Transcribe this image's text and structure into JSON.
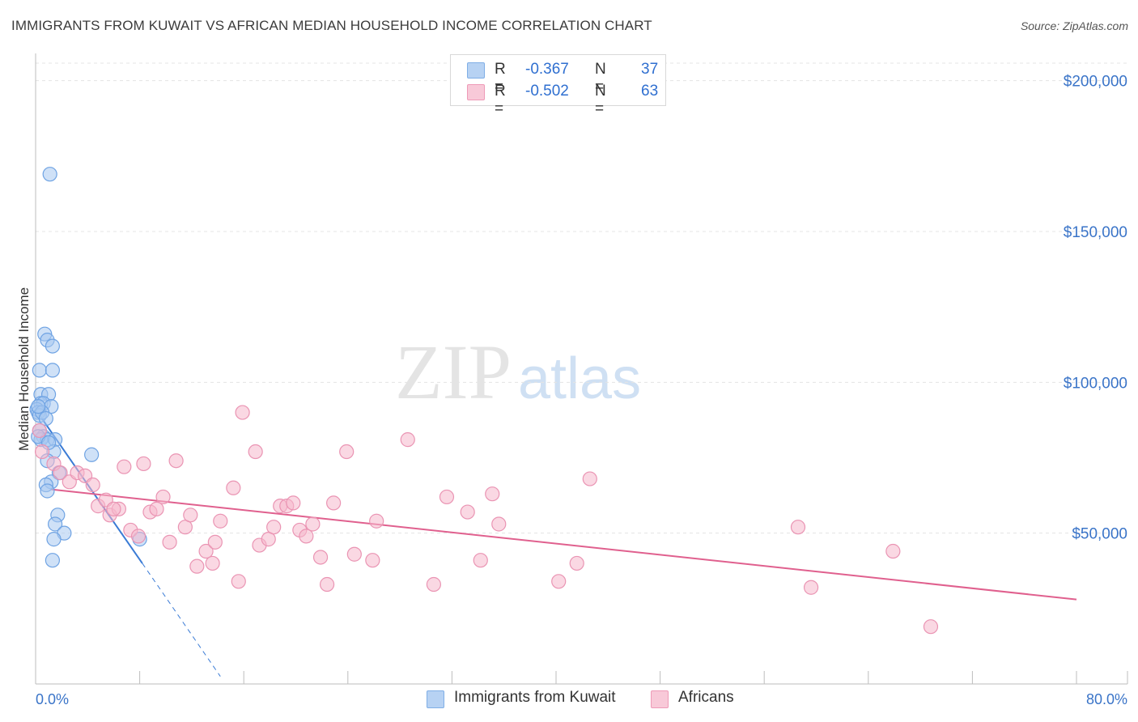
{
  "title": "IMMIGRANTS FROM KUWAIT VS AFRICAN MEDIAN HOUSEHOLD INCOME CORRELATION CHART",
  "source": "Source: ZipAtlas.com",
  "watermark": {
    "part1": "ZIP",
    "part2": "atlas"
  },
  "legend_top": [
    {
      "r_label": "R =",
      "r_value": "-0.367",
      "n_label": "N =",
      "n_value": "37",
      "color": "#a8c8f0"
    },
    {
      "r_label": "R =",
      "r_value": "-0.502",
      "n_label": "N =",
      "n_value": "63",
      "color": "#f5b8cc"
    }
  ],
  "legend_bottom": [
    {
      "label": "Immigrants from Kuwait",
      "color": "#a8c8f0"
    },
    {
      "label": "Africans",
      "color": "#f5b8cc"
    }
  ],
  "chart_data": {
    "type": "scatter",
    "ylabel": "Median Household Income",
    "xlabel": "",
    "x_tick_labels": [
      "0.0%",
      "80.0%"
    ],
    "y_tick_labels": [
      "$200,000",
      "$150,000",
      "$100,000",
      "$50,000"
    ],
    "xlim": [
      0,
      80
    ],
    "ylim": [
      0,
      205000
    ],
    "y_gridlines": [
      50000,
      100000,
      150000,
      200000
    ],
    "colors": {
      "kuwait": "#3a7bd5",
      "kuwait_fill": "#a8c8f0",
      "africans": "#e0608e",
      "africans_fill": "#f5b8cc",
      "tick_label": "#3a74c8"
    },
    "series": [
      {
        "name": "Immigrants from Kuwait",
        "points": [
          [
            1.1,
            169000
          ],
          [
            0.7,
            116000
          ],
          [
            0.9,
            114000
          ],
          [
            1.3,
            112000
          ],
          [
            0.3,
            104000
          ],
          [
            1.3,
            104000
          ],
          [
            0.4,
            96000
          ],
          [
            1.0,
            96000
          ],
          [
            0.4,
            93000
          ],
          [
            0.6,
            93000
          ],
          [
            1.2,
            92000
          ],
          [
            0.1,
            91000
          ],
          [
            0.2,
            90000
          ],
          [
            0.3,
            89000
          ],
          [
            0.3,
            84000
          ],
          [
            0.6,
            82000
          ],
          [
            0.4,
            81000
          ],
          [
            0.9,
            81000
          ],
          [
            1.5,
            81000
          ],
          [
            1.4,
            77000
          ],
          [
            4.3,
            76000
          ],
          [
            0.9,
            74000
          ],
          [
            1.8,
            70000
          ],
          [
            1.2,
            67000
          ],
          [
            0.8,
            66000
          ],
          [
            0.9,
            64000
          ],
          [
            1.7,
            56000
          ],
          [
            1.5,
            53000
          ],
          [
            2.2,
            50000
          ],
          [
            1.4,
            48000
          ],
          [
            8.0,
            48000
          ],
          [
            1.3,
            41000
          ],
          [
            0.2,
            82000
          ],
          [
            0.5,
            90000
          ],
          [
            0.8,
            88000
          ],
          [
            0.2,
            92000
          ],
          [
            1.0,
            80000
          ]
        ],
        "trend": {
          "x": [
            0.0,
            8.2
          ],
          "y": [
            91000,
            40000
          ],
          "dashed_to": [
            14.2,
            2500
          ]
        }
      },
      {
        "name": "Africans",
        "points": [
          [
            0.3,
            84000
          ],
          [
            0.5,
            77000
          ],
          [
            1.4,
            73000
          ],
          [
            1.9,
            70000
          ],
          [
            2.6,
            67000
          ],
          [
            3.2,
            70000
          ],
          [
            3.8,
            69000
          ],
          [
            4.4,
            66000
          ],
          [
            4.8,
            59000
          ],
          [
            5.4,
            61000
          ],
          [
            5.7,
            56000
          ],
          [
            6.4,
            58000
          ],
          [
            6.8,
            72000
          ],
          [
            7.3,
            51000
          ],
          [
            7.9,
            49000
          ],
          [
            8.3,
            73000
          ],
          [
            8.8,
            57000
          ],
          [
            9.3,
            58000
          ],
          [
            9.8,
            62000
          ],
          [
            10.3,
            47000
          ],
          [
            10.8,
            74000
          ],
          [
            11.5,
            52000
          ],
          [
            11.9,
            56000
          ],
          [
            12.4,
            39000
          ],
          [
            13.1,
            44000
          ],
          [
            13.6,
            40000
          ],
          [
            13.8,
            47000
          ],
          [
            14.2,
            54000
          ],
          [
            15.2,
            65000
          ],
          [
            15.6,
            34000
          ],
          [
            15.9,
            90000
          ],
          [
            16.9,
            77000
          ],
          [
            17.2,
            46000
          ],
          [
            17.9,
            48000
          ],
          [
            18.3,
            52000
          ],
          [
            18.8,
            59000
          ],
          [
            19.3,
            59000
          ],
          [
            19.8,
            60000
          ],
          [
            20.3,
            51000
          ],
          [
            20.8,
            49000
          ],
          [
            21.3,
            53000
          ],
          [
            21.9,
            42000
          ],
          [
            22.4,
            33000
          ],
          [
            22.9,
            60000
          ],
          [
            23.9,
            77000
          ],
          [
            24.5,
            43000
          ],
          [
            25.9,
            41000
          ],
          [
            26.2,
            54000
          ],
          [
            28.6,
            81000
          ],
          [
            30.6,
            33000
          ],
          [
            31.6,
            62000
          ],
          [
            33.2,
            57000
          ],
          [
            34.2,
            41000
          ],
          [
            35.1,
            63000
          ],
          [
            35.6,
            53000
          ],
          [
            40.2,
            34000
          ],
          [
            41.6,
            40000
          ],
          [
            42.6,
            68000
          ],
          [
            58.6,
            52000
          ],
          [
            59.6,
            32000
          ],
          [
            65.9,
            44000
          ],
          [
            68.8,
            19000
          ],
          [
            6.0,
            58000
          ]
        ],
        "trend": {
          "x": [
            1.2,
            80.0
          ],
          "y": [
            64500,
            28000
          ]
        }
      }
    ]
  }
}
